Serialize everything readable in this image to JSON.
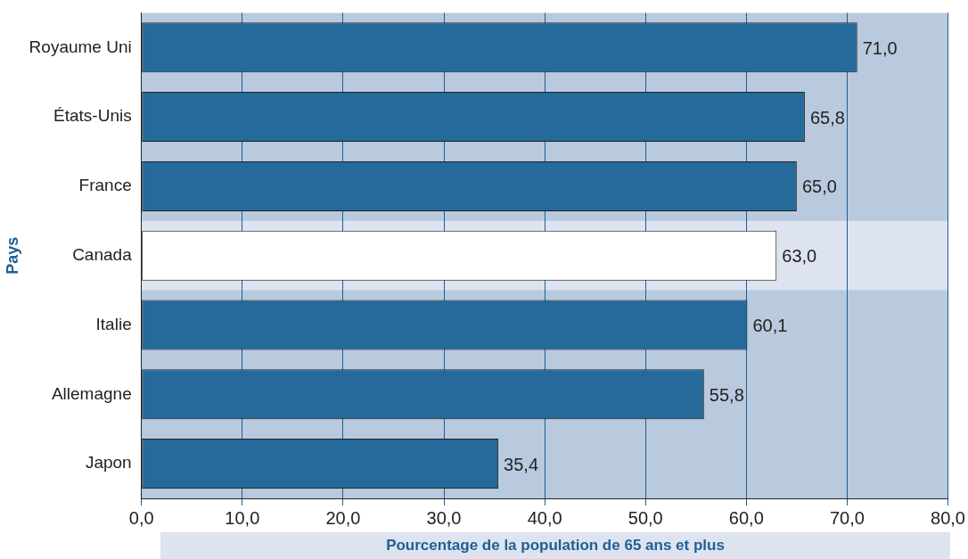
{
  "chart_data": {
    "type": "bar",
    "orientation": "horizontal",
    "xlabel": "Pourcentage de la population de 65 ans et plus",
    "ylabel": "Pays",
    "categories": [
      "Royaume Uni",
      "États-Unis",
      "France",
      "Canada",
      "Italie",
      "Allemagne",
      "Japon"
    ],
    "values": [
      71.0,
      65.8,
      65.0,
      63.0,
      60.1,
      55.8,
      35.4
    ],
    "colors": [
      "#256a9a",
      "#256a9a",
      "#256a9a",
      "#ffffff",
      "#256a9a",
      "#256a9a",
      "#256a9a"
    ],
    "value_labels": [
      "71,0",
      "65,8",
      "65,0",
      "63,0",
      "60,1",
      "55,8",
      "35,4"
    ],
    "xlim": [
      0,
      80
    ],
    "xticks": [
      {
        "value": 0,
        "label": "0,0"
      },
      {
        "value": 10,
        "label": "10,0"
      },
      {
        "value": 20,
        "label": "20,0"
      },
      {
        "value": 30,
        "label": "30,0"
      },
      {
        "value": 40,
        "label": "40,0"
      },
      {
        "value": 50,
        "label": "50,0"
      },
      {
        "value": 60,
        "label": "60,0"
      },
      {
        "value": 70,
        "label": "70,0"
      },
      {
        "value": 80,
        "label": "80,0"
      }
    ],
    "bands": [
      {
        "axis": "x",
        "from": 0,
        "to": 80,
        "color": "#b9c9de"
      },
      {
        "axis": "y",
        "from": "Canada",
        "to": "Canada",
        "color": "#dde3ef"
      }
    ],
    "grid": "x",
    "legend": false
  }
}
